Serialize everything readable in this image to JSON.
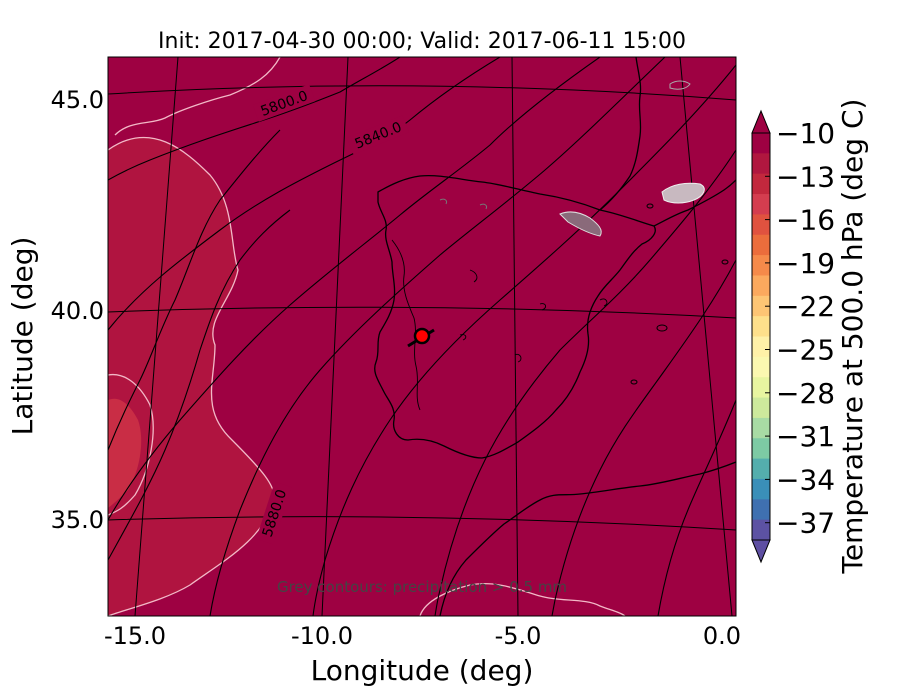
{
  "figure": {
    "title": "Init: 2017-04-30 00:00; Valid: 2017-06-11 15:00",
    "xlabel": "Longitude (deg)",
    "ylabel": "Latitude (deg)",
    "note": "Grey contours: precipitation > 0.5 mm"
  },
  "map": {
    "lon_ticks": [
      "-15.0",
      "-10.0",
      "-5.0",
      "0.0"
    ],
    "lat_ticks": [
      "45.0",
      "40.0",
      "35.0"
    ],
    "height_contour_labels": [
      "5800.0",
      "5840.0",
      "5880.0"
    ],
    "marker_color": "#ff0000"
  },
  "colorbar": {
    "label": "Temperature at 500.0 hPa (deg C)",
    "ticks": [
      "−10",
      "−13",
      "−16",
      "−19",
      "−22",
      "−25",
      "−28",
      "−31",
      "−34",
      "−37"
    ],
    "colors": [
      "#9e0142",
      "#b0173f",
      "#c2283d",
      "#d43d4f",
      "#e0523f",
      "#eb6d3c",
      "#f58a4a",
      "#fba95e",
      "#fdc574",
      "#fee08b",
      "#fff1a8",
      "#fbf8b0",
      "#e8f5a0",
      "#cde99c",
      "#a8dba4",
      "#7dcaa4",
      "#54aead",
      "#3a8fb8",
      "#3f70b0",
      "#5c52a3"
    ],
    "extend_top": "#9e0142",
    "extend_bottom": "#5e4fa2"
  },
  "colors": {
    "field": "#9e0142",
    "warm_zone": "#b01440",
    "warm_core": "#c92d45"
  }
}
